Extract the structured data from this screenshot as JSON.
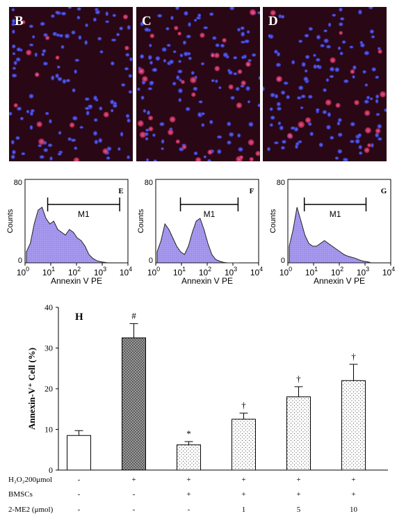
{
  "micrographs": [
    {
      "letter": "B"
    },
    {
      "letter": "C"
    },
    {
      "letter": "D"
    }
  ],
  "flow_panels": [
    {
      "letter": "E",
      "ylabel": "Counts",
      "xlabel": "Annexin V PE",
      "gate": "M1",
      "ymax_label": "80",
      "ymin_label": "0"
    },
    {
      "letter": "F",
      "ylabel": "Counts",
      "xlabel": "Annexin V PE",
      "gate": "M1",
      "ymax_label": "80",
      "ymin_label": "0"
    },
    {
      "letter": "G",
      "ylabel": "Counts",
      "xlabel": "Annexin V PE",
      "gate": "M1",
      "ymax_label": "80",
      "ymin_label": "0"
    }
  ],
  "flow_xticks": [
    "10",
    "10",
    "10",
    "10",
    "10"
  ],
  "flow_xtick_exps": [
    "0",
    "1",
    "2",
    "3",
    "4"
  ],
  "chart_data": {
    "type": "bar",
    "panel_letter": "H",
    "ylabel": "Annexin-V⁺ Cell (%)",
    "ylim": [
      0,
      40
    ],
    "yticks": [
      "0",
      "10",
      "20",
      "30",
      "40"
    ],
    "values": [
      8.5,
      32.5,
      6.2,
      12.5,
      18,
      22
    ],
    "errors": [
      1.2,
      3.5,
      0.8,
      1.5,
      2.5,
      4.0
    ],
    "annotations": [
      "",
      "#",
      "*",
      "†",
      "†",
      "†"
    ],
    "fills": [
      "white",
      "dark-dotted",
      "light-dotted",
      "light-dotted",
      "light-dotted",
      "light-dotted"
    ]
  },
  "conditions": [
    {
      "label": "H₂O₂200μmol",
      "values": [
        "-",
        "+",
        "+",
        "+",
        "+",
        "+"
      ]
    },
    {
      "label": "BMSCs",
      "values": [
        "-",
        "-",
        "+",
        "+",
        "+",
        "+"
      ]
    },
    {
      "label": "2-ME2 (μmol)",
      "values": [
        "-",
        "-",
        "-",
        "1",
        "5",
        "10"
      ]
    }
  ]
}
